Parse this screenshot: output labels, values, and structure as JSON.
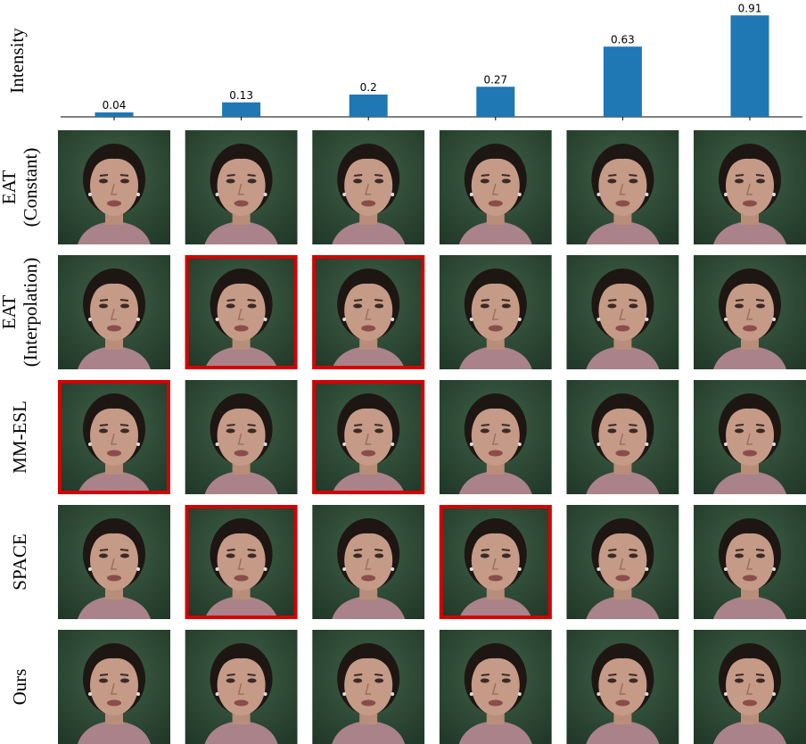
{
  "chart_data": {
    "type": "bar",
    "y_label": "Intensity",
    "categories": [
      null,
      null,
      null,
      null,
      null,
      null
    ],
    "values": [
      0.04,
      0.13,
      0.2,
      0.27,
      0.63,
      0.91
    ],
    "color": "#1f77b4",
    "ylim": [
      0,
      1
    ]
  },
  "image_grid": {
    "highlight_color": "#d40000",
    "rows": [
      {
        "label": [
          "EAT",
          "(Constant)"
        ],
        "highlighted": [
          false,
          false,
          false,
          false,
          false,
          false
        ]
      },
      {
        "label": [
          "EAT",
          "(Interpolation)"
        ],
        "highlighted": [
          false,
          true,
          true,
          false,
          false,
          false
        ]
      },
      {
        "label": [
          "MM-ESL"
        ],
        "highlighted": [
          true,
          false,
          true,
          false,
          false,
          false
        ]
      },
      {
        "label": [
          "SPACE"
        ],
        "highlighted": [
          false,
          true,
          false,
          true,
          false,
          false
        ]
      },
      {
        "label": [
          "Ours"
        ],
        "highlighted": [
          false,
          false,
          false,
          false,
          false,
          false
        ]
      }
    ]
  }
}
